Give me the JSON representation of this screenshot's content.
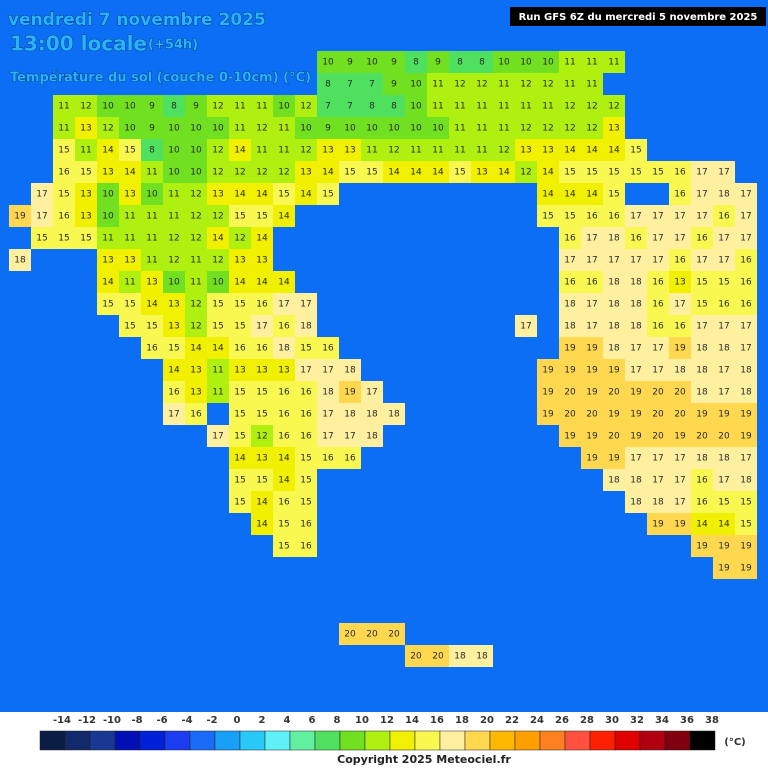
{
  "header": {
    "date": "vendredi 7 novembre 2025",
    "time": "13:00 locale",
    "offset": "(+54h)",
    "subtitle": "Température du sol (couche 0-10cm) (°C)",
    "run": "Run GFS 6Z du mercredi 5 novembre 2025"
  },
  "map": {
    "sea_color": "#0c6ef4",
    "grid": [
      [
        null,
        null,
        null,
        null,
        null,
        null,
        null,
        null,
        null,
        null,
        null,
        null,
        null,
        null,
        10,
        9,
        10,
        9,
        8,
        9,
        8,
        8,
        10,
        10,
        10,
        11,
        11,
        11
      ],
      [
        null,
        null,
        null,
        null,
        null,
        null,
        null,
        null,
        null,
        null,
        null,
        null,
        null,
        null,
        8,
        7,
        7,
        9,
        10,
        11,
        12,
        12,
        11,
        12,
        12,
        11,
        11
      ],
      [
        null,
        null,
        11,
        12,
        10,
        10,
        9,
        8,
        9,
        12,
        11,
        11,
        10,
        12,
        7,
        7,
        8,
        8,
        10,
        11,
        11,
        11,
        11,
        11,
        11,
        12,
        12,
        12
      ],
      [
        null,
        null,
        11,
        13,
        12,
        10,
        9,
        10,
        10,
        10,
        11,
        12,
        11,
        10,
        9,
        10,
        10,
        10,
        10,
        10,
        11,
        11,
        11,
        12,
        12,
        12,
        12,
        13
      ],
      [
        null,
        null,
        15,
        11,
        14,
        15,
        8,
        10,
        10,
        12,
        14,
        11,
        11,
        12,
        13,
        13,
        11,
        12,
        11,
        11,
        11,
        11,
        12,
        13,
        13,
        14,
        14,
        14,
        15
      ],
      [
        null,
        null,
        16,
        15,
        13,
        14,
        11,
        10,
        10,
        12,
        12,
        12,
        12,
        13,
        14,
        15,
        15,
        14,
        14,
        14,
        15,
        13,
        14,
        12,
        14,
        15,
        15,
        15,
        15,
        15,
        16,
        17,
        17
      ],
      [
        null,
        17,
        15,
        13,
        10,
        13,
        10,
        11,
        12,
        13,
        14,
        14,
        15,
        14,
        15,
        null,
        null,
        null,
        null,
        null,
        null,
        null,
        null,
        null,
        14,
        14,
        14,
        15,
        null,
        null,
        16,
        17,
        18,
        17
      ],
      [
        19,
        17,
        16,
        13,
        10,
        11,
        11,
        11,
        12,
        12,
        15,
        15,
        14,
        null,
        null,
        null,
        null,
        null,
        null,
        null,
        null,
        null,
        null,
        null,
        15,
        15,
        16,
        16,
        17,
        17,
        17,
        17,
        16,
        17
      ],
      [
        null,
        15,
        15,
        15,
        11,
        11,
        11,
        12,
        12,
        14,
        12,
        14,
        null,
        null,
        null,
        null,
        null,
        null,
        null,
        null,
        null,
        null,
        null,
        null,
        null,
        16,
        17,
        18,
        16,
        17,
        17,
        16,
        17,
        17
      ],
      [
        18,
        null,
        null,
        null,
        13,
        13,
        11,
        12,
        11,
        12,
        13,
        13,
        null,
        null,
        null,
        null,
        null,
        null,
        null,
        null,
        null,
        null,
        null,
        null,
        null,
        17,
        17,
        17,
        17,
        17,
        16,
        17,
        17,
        16
      ],
      [
        null,
        null,
        null,
        null,
        14,
        11,
        13,
        10,
        11,
        10,
        14,
        14,
        14,
        null,
        null,
        null,
        null,
        null,
        null,
        null,
        null,
        null,
        null,
        null,
        null,
        16,
        16,
        18,
        18,
        16,
        13,
        15,
        15,
        16
      ],
      [
        null,
        null,
        null,
        null,
        15,
        15,
        14,
        13,
        12,
        15,
        15,
        16,
        17,
        17,
        null,
        null,
        null,
        null,
        null,
        null,
        null,
        null,
        null,
        null,
        null,
        18,
        17,
        18,
        18,
        16,
        17,
        15,
        16,
        16
      ],
      [
        null,
        null,
        null,
        null,
        null,
        15,
        15,
        13,
        12,
        15,
        15,
        17,
        16,
        18,
        null,
        null,
        null,
        null,
        null,
        null,
        null,
        null,
        null,
        17,
        null,
        18,
        17,
        18,
        18,
        16,
        16,
        17,
        17,
        17
      ],
      [
        null,
        null,
        null,
        null,
        null,
        null,
        16,
        15,
        14,
        14,
        16,
        16,
        18,
        15,
        16,
        null,
        null,
        null,
        null,
        null,
        null,
        null,
        null,
        null,
        null,
        19,
        19,
        18,
        17,
        17,
        19,
        18,
        18,
        17
      ],
      [
        null,
        null,
        null,
        null,
        null,
        null,
        null,
        14,
        13,
        11,
        13,
        13,
        13,
        17,
        17,
        18,
        null,
        null,
        null,
        null,
        null,
        null,
        null,
        null,
        19,
        19,
        19,
        19,
        17,
        17,
        18,
        18,
        17,
        18
      ],
      [
        null,
        null,
        null,
        null,
        null,
        null,
        null,
        16,
        13,
        11,
        15,
        15,
        16,
        16,
        18,
        19,
        17,
        null,
        null,
        null,
        null,
        null,
        null,
        null,
        19,
        20,
        19,
        20,
        19,
        20,
        20,
        18,
        17,
        18
      ],
      [
        null,
        null,
        null,
        null,
        null,
        null,
        null,
        17,
        16,
        null,
        15,
        15,
        16,
        16,
        17,
        18,
        18,
        18,
        null,
        null,
        null,
        null,
        null,
        null,
        19,
        20,
        20,
        19,
        19,
        20,
        20,
        19,
        19,
        19
      ],
      [
        null,
        null,
        null,
        null,
        null,
        null,
        null,
        null,
        null,
        17,
        15,
        12,
        16,
        16,
        17,
        17,
        18,
        null,
        null,
        null,
        null,
        null,
        null,
        null,
        null,
        19,
        19,
        20,
        19,
        20,
        19,
        20,
        20,
        19
      ],
      [
        null,
        null,
        null,
        null,
        null,
        null,
        null,
        null,
        null,
        null,
        14,
        13,
        14,
        15,
        16,
        16,
        null,
        null,
        null,
        null,
        null,
        null,
        null,
        null,
        null,
        null,
        19,
        19,
        17,
        17,
        17,
        18,
        18,
        17
      ],
      [
        null,
        null,
        null,
        null,
        null,
        null,
        null,
        null,
        null,
        null,
        15,
        15,
        14,
        15,
        null,
        null,
        null,
        null,
        null,
        null,
        null,
        null,
        null,
        null,
        null,
        null,
        null,
        18,
        18,
        17,
        17,
        16,
        17,
        18
      ],
      [
        null,
        null,
        null,
        null,
        null,
        null,
        null,
        null,
        null,
        null,
        15,
        14,
        16,
        15,
        null,
        null,
        null,
        null,
        null,
        null,
        null,
        null,
        null,
        null,
        null,
        null,
        null,
        null,
        18,
        18,
        17,
        16,
        15,
        15
      ],
      [
        null,
        null,
        null,
        null,
        null,
        null,
        null,
        null,
        null,
        null,
        null,
        14,
        15,
        16,
        null,
        null,
        null,
        null,
        null,
        null,
        null,
        null,
        null,
        null,
        null,
        null,
        null,
        null,
        null,
        19,
        19,
        14,
        14,
        15
      ],
      [
        null,
        null,
        null,
        null,
        null,
        null,
        null,
        null,
        null,
        null,
        null,
        null,
        15,
        16,
        null,
        null,
        null,
        null,
        null,
        null,
        null,
        null,
        null,
        null,
        null,
        null,
        null,
        null,
        null,
        null,
        null,
        19,
        19,
        19
      ],
      [
        null,
        null,
        null,
        null,
        null,
        null,
        null,
        null,
        null,
        null,
        null,
        null,
        null,
        null,
        null,
        null,
        null,
        null,
        null,
        null,
        null,
        null,
        null,
        null,
        null,
        null,
        null,
        null,
        null,
        null,
        null,
        null,
        19,
        19
      ],
      [],
      [],
      [
        null,
        null,
        null,
        null,
        null,
        null,
        null,
        null,
        null,
        null,
        null,
        null,
        null,
        null,
        null,
        20,
        20,
        20
      ],
      [
        null,
        null,
        null,
        null,
        null,
        null,
        null,
        null,
        null,
        null,
        null,
        null,
        null,
        null,
        null,
        null,
        null,
        null,
        20,
        20,
        18,
        18
      ]
    ]
  },
  "colorbar": {
    "labels": [
      -14,
      -12,
      -10,
      -8,
      -6,
      -4,
      -2,
      0,
      2,
      4,
      6,
      8,
      10,
      12,
      14,
      16,
      18,
      20,
      22,
      24,
      26,
      28,
      30,
      32,
      34,
      36,
      38
    ],
    "colors": [
      "#0b1d45",
      "#122a6b",
      "#183892",
      "#0010b4",
      "#0020d8",
      "#1c3cf0",
      "#1a6cf8",
      "#18a0f8",
      "#28c8f8",
      "#60f0f8",
      "#60f0a0",
      "#50e060",
      "#70e020",
      "#b0f010",
      "#f0f000",
      "#f8f850",
      "#fff0a0",
      "#ffd850",
      "#ffb800",
      "#ffa000",
      "#ff8020",
      "#ff5040",
      "#ff2000",
      "#e00000",
      "#b00010",
      "#800010",
      "#000000"
    ],
    "unit": "(°C)"
  },
  "footer": {
    "copyright": "Copyright 2025 Meteociel.fr"
  }
}
